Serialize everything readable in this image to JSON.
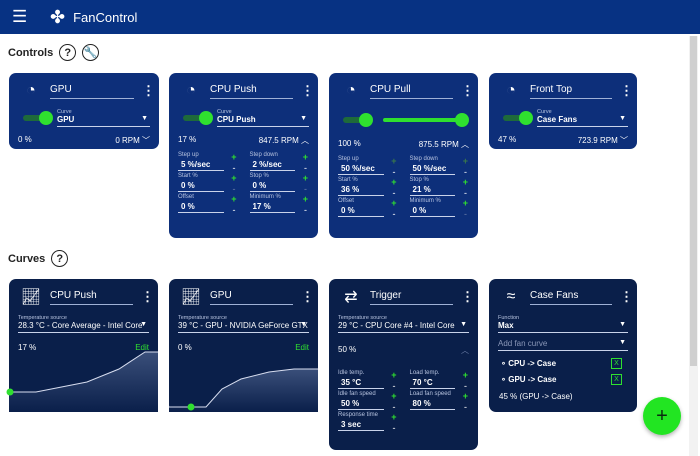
{
  "app": {
    "title": "FanControl",
    "menu_icon": "hamburger-icon",
    "logo_icon": "fan-icon"
  },
  "sections": {
    "controls": "Controls",
    "curves": "Curves"
  },
  "controls": [
    {
      "name": "GPU",
      "curve_label": "Curve",
      "curve": "GPU",
      "percent": "0 %",
      "rpm": "0 RPM",
      "expanded": false
    },
    {
      "name": "CPU Push",
      "curve_label": "Curve",
      "curve": "CPU Push",
      "percent": "17 %",
      "rpm": "847.5 RPM",
      "expanded": true,
      "fields": [
        {
          "label": "Step up",
          "value": "5 %/sec"
        },
        {
          "label": "Step down",
          "value": "2 %/sec"
        },
        {
          "label": "Start %",
          "value": "0 %"
        },
        {
          "label": "Stop %",
          "value": "0 %"
        },
        {
          "label": "Offset",
          "value": "0 %"
        },
        {
          "label": "Minimum %",
          "value": "17 %"
        }
      ]
    },
    {
      "name": "CPU Pull",
      "manual_value": 100,
      "percent": "100 %",
      "rpm": "875.5 RPM",
      "expanded": true,
      "fields": [
        {
          "label": "Step up",
          "value": "50 %/sec"
        },
        {
          "label": "Step down",
          "value": "50 %/sec"
        },
        {
          "label": "Start %",
          "value": "36 %"
        },
        {
          "label": "Stop %",
          "value": "21 %"
        },
        {
          "label": "Offset",
          "value": "0 %"
        },
        {
          "label": "Minimum %",
          "value": "0 %"
        }
      ]
    },
    {
      "name": "Front Top",
      "curve_label": "Curve",
      "curve": "Case Fans",
      "percent": "47 %",
      "rpm": "723.9 RPM",
      "expanded": false
    }
  ],
  "curves": [
    {
      "name": "CPU Push",
      "source_label": "Temperature source",
      "source": "28.3 °C - Core Average - Intel Core",
      "percent": "17 %",
      "edit": "Edit"
    },
    {
      "name": "GPU",
      "source_label": "Temperature source",
      "source": "39 °C - GPU - NVIDIA GeForce GTX",
      "percent": "0 %",
      "edit": "Edit"
    },
    {
      "name": "Trigger",
      "source_label": "Temperature source",
      "source": "29 °C - CPU Core #4 - Intel Core",
      "percent": "50 %",
      "fields": [
        {
          "label": "Idle temp.",
          "value": "35 °C"
        },
        {
          "label": "Load temp.",
          "value": "70 °C"
        },
        {
          "label": "Idle fan speed",
          "value": "50 %"
        },
        {
          "label": "Load fan speed",
          "value": "80 %"
        },
        {
          "label": "Response time",
          "value": "3 sec"
        }
      ]
    },
    {
      "name": "Case Fans",
      "function_label": "Function",
      "function": "Max",
      "add_placeholder": "Add fan curve",
      "items": [
        "CPU -> Case",
        "GPU -> Case"
      ],
      "remove": "X",
      "result": "45 % (GPU -> Case)"
    }
  ],
  "colors": {
    "header": "#073283",
    "control_card": "#0d2f7a",
    "curve_card": "#0a1f4a",
    "accent": "#2fe02f"
  }
}
